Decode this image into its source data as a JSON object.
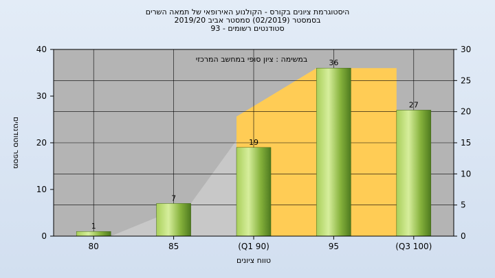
{
  "chart_data": {
    "type": "bar",
    "title_lines": [
      "היסטוגרמת ציונים בקורס - הקולנוע האירופאי של תמאה השרים",
      "בסמסטר  (02/2019)  סמסטר אביב 2019/20",
      "סטודנטים רשומים - 93"
    ],
    "subtitle": "במשימה : ציון סופי במחשב המרכזי",
    "xlabel": "טווח ציונים",
    "ylabel": "מספר סטודנטים",
    "categories": [
      "80",
      "85",
      "(Q1 90)",
      "95",
      "(Q3 100)"
    ],
    "values": [
      1,
      7,
      19,
      36,
      27
    ],
    "data_labels": [
      "1",
      "7",
      "19",
      "36",
      "27"
    ],
    "ylim": [
      0,
      40
    ],
    "yticks": [
      "0",
      "10",
      "20",
      "30",
      "40"
    ],
    "y2lim": [
      0,
      30
    ],
    "y2ticks": [
      "0",
      "5",
      "10",
      "15",
      "20",
      "25",
      "30"
    ],
    "grid": true,
    "colors": {
      "bar_light": "#c8e68c",
      "bar_dark": "#4e7a1f",
      "plot_bg": "#b4b4b4",
      "gray_area": "#c8c8c8",
      "quartile_area": "#ffcc55"
    }
  }
}
